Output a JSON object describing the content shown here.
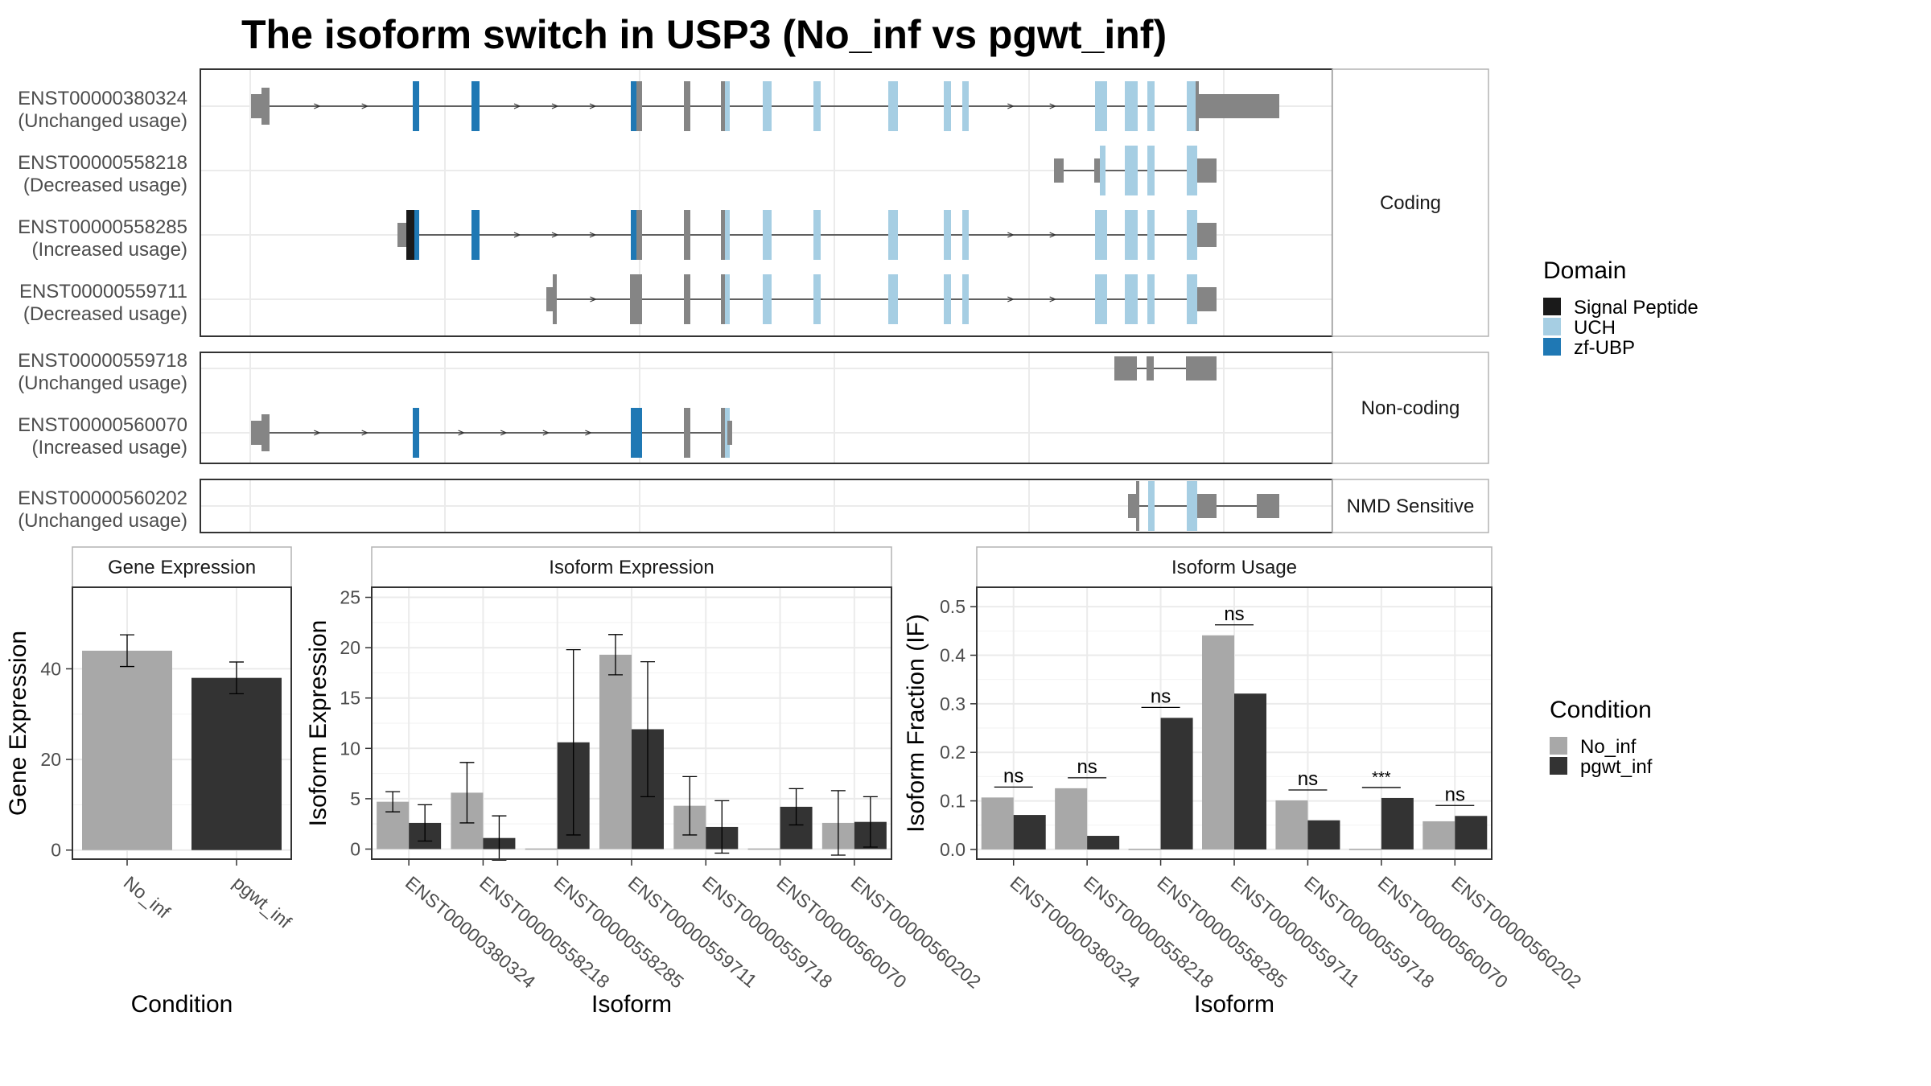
{
  "title": "The isoform switch in USP3 (No_inf vs pgwt_inf)",
  "colors": {
    "no_inf": "#a8a8a8",
    "pgwt_inf": "#333333",
    "utr": "#858585",
    "signal_peptide": "#1a1a1a",
    "uch": "#a6cee3",
    "zf_ubp": "#1f78b4",
    "panel_border": "#333333",
    "strip_border": "#b3b3b3",
    "grid": "#ebebeb"
  },
  "structure": {
    "categories": [
      "Coding",
      "Non-coding",
      "NMD Sensitive"
    ],
    "isoforms": [
      {
        "id": "ENST00000380324",
        "usage": "(Unchanged usage)",
        "category": "Coding"
      },
      {
        "id": "ENST00000558218",
        "usage": "(Decreased usage)",
        "category": "Coding"
      },
      {
        "id": "ENST00000558285",
        "usage": "(Increased usage)",
        "category": "Coding"
      },
      {
        "id": "ENST00000559711",
        "usage": "(Decreased usage)",
        "category": "Coding"
      },
      {
        "id": "ENST00000559718",
        "usage": "(Unchanged usage)",
        "category": "Non-coding"
      },
      {
        "id": "ENST00000560070",
        "usage": "(Increased usage)",
        "category": "Non-coding"
      },
      {
        "id": "ENST00000560202",
        "usage": "(Unchanged usage)",
        "category": "NMD Sensitive"
      }
    ]
  },
  "domain_legend": {
    "title": "Domain",
    "items": [
      {
        "label": "Signal Peptide",
        "color": "#1a1a1a"
      },
      {
        "label": "UCH",
        "color": "#a6cee3"
      },
      {
        "label": "zf-UBP",
        "color": "#1f78b4"
      }
    ]
  },
  "condition_legend": {
    "title": "Condition",
    "items": [
      {
        "label": "No_inf",
        "color": "#a8a8a8"
      },
      {
        "label": "pgwt_inf",
        "color": "#333333"
      }
    ]
  },
  "chart_data": [
    {
      "type": "bar",
      "title": "Gene Expression",
      "xlabel": "Condition",
      "ylabel": "Gene Expression",
      "categories": [
        "No_inf",
        "pgwt_inf"
      ],
      "values": [
        44,
        38
      ],
      "error_low": [
        40.5,
        34.5
      ],
      "error_high": [
        47.5,
        41.5
      ],
      "ylim": [
        -2,
        58
      ],
      "yticks": [
        0,
        20,
        40
      ],
      "grid": true
    },
    {
      "type": "bar",
      "title": "Isoform Expression",
      "xlabel": "Isoform",
      "ylabel": "Isoform Expression",
      "categories": [
        "ENST00000380324",
        "ENST00000558218",
        "ENST00000558285",
        "ENST00000559711",
        "ENST00000559718",
        "ENST00000560070",
        "ENST00000560202"
      ],
      "series": [
        {
          "name": "No_inf",
          "values": [
            4.7,
            5.6,
            0,
            19.3,
            4.3,
            0,
            2.6
          ],
          "error_low": [
            3.7,
            2.6,
            0,
            17.3,
            1.4,
            0,
            -0.6
          ],
          "error_high": [
            5.7,
            8.6,
            0,
            21.3,
            7.2,
            0,
            5.8
          ]
        },
        {
          "name": "pgwt_inf",
          "values": [
            2.6,
            1.1,
            10.6,
            11.9,
            2.2,
            4.2,
            2.7
          ],
          "error_low": [
            0.8,
            -1.1,
            1.4,
            5.2,
            -0.4,
            2.4,
            0.2
          ],
          "error_high": [
            4.4,
            3.3,
            19.8,
            18.6,
            4.8,
            6.0,
            5.2
          ]
        }
      ],
      "ylim": [
        -1,
        26
      ],
      "yticks": [
        0,
        5,
        10,
        15,
        20,
        25
      ],
      "grid": true
    },
    {
      "type": "bar",
      "title": "Isoform Usage",
      "xlabel": "Isoform",
      "ylabel": "Isoform Fraction (IF)",
      "categories": [
        "ENST00000380324",
        "ENST00000558218",
        "ENST00000558285",
        "ENST00000559711",
        "ENST00000559718",
        "ENST00000560070",
        "ENST00000560202"
      ],
      "series": [
        {
          "name": "No_inf",
          "values": [
            0.107,
            0.126,
            0.0,
            0.441,
            0.101,
            0.0,
            0.058
          ]
        },
        {
          "name": "pgwt_inf",
          "values": [
            0.071,
            0.028,
            0.271,
            0.321,
            0.06,
            0.106,
            0.069
          ]
        }
      ],
      "significance": [
        "ns",
        "ns",
        "ns",
        "ns",
        "ns",
        "***",
        "ns"
      ],
      "ylim": [
        -0.02,
        0.54
      ],
      "yticks": [
        "0.0",
        "0.1",
        "0.2",
        "0.3",
        "0.4",
        "0.5"
      ],
      "grid": true
    }
  ]
}
